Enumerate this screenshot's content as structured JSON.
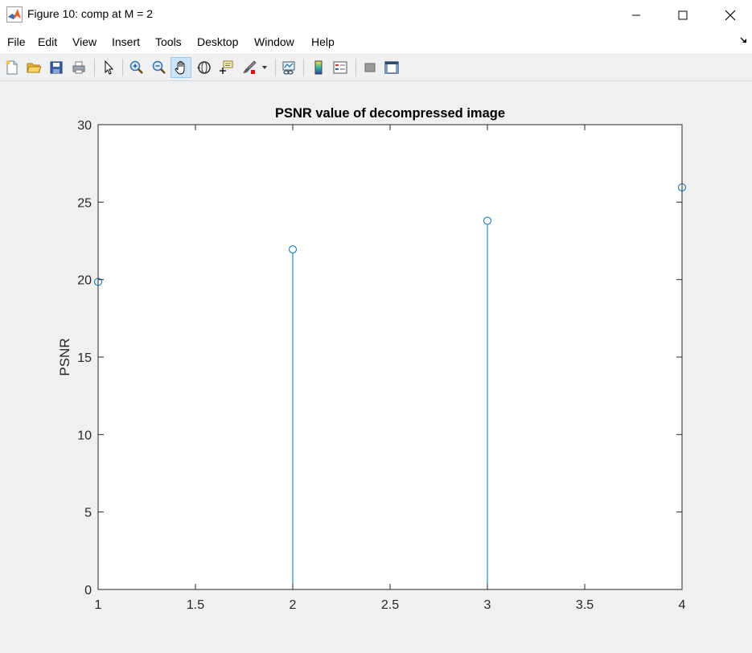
{
  "window": {
    "title": "Figure 10: comp at M = 2"
  },
  "menu": {
    "items": [
      "File",
      "Edit",
      "View",
      "Insert",
      "Tools",
      "Desktop",
      "Window",
      "Help"
    ]
  },
  "toolbar": {
    "buttons": [
      {
        "name": "new-figure",
        "icon": "new-file-icon"
      },
      {
        "name": "open-file",
        "icon": "folder-open-icon"
      },
      {
        "name": "save-figure",
        "icon": "save-icon"
      },
      {
        "name": "print-figure",
        "icon": "print-icon"
      },
      {
        "name": "edit-plot",
        "icon": "pointer-icon"
      },
      {
        "name": "zoom-in",
        "icon": "zoom-in-icon"
      },
      {
        "name": "zoom-out",
        "icon": "zoom-out-icon"
      },
      {
        "name": "pan",
        "icon": "hand-icon",
        "active": true
      },
      {
        "name": "rotate-3d",
        "icon": "rotate-icon"
      },
      {
        "name": "data-cursor",
        "icon": "data-cursor-icon"
      },
      {
        "name": "brush",
        "icon": "brush-icon"
      },
      {
        "name": "link-plot",
        "icon": "link-plot-icon"
      },
      {
        "name": "insert-colorbar",
        "icon": "colorbar-icon"
      },
      {
        "name": "insert-legend",
        "icon": "legend-icon"
      },
      {
        "name": "hide-plot-tools",
        "icon": "hide-tools-icon"
      },
      {
        "name": "show-plot-tools",
        "icon": "show-tools-icon"
      }
    ]
  },
  "chart_data": {
    "type": "stem",
    "title": "PSNR value of decompressed image",
    "xlabel": "",
    "ylabel": "PSNR",
    "x": [
      1,
      2,
      3,
      4
    ],
    "values": [
      19.85,
      21.95,
      23.8,
      25.95
    ],
    "xlim": [
      1,
      4
    ],
    "ylim": [
      0,
      30
    ],
    "xticks": [
      1,
      1.5,
      2,
      2.5,
      3,
      3.5,
      4
    ],
    "xtick_labels": [
      "1",
      "1.5",
      "2",
      "2.5",
      "3",
      "3.5",
      "4"
    ],
    "yticks": [
      0,
      5,
      10,
      15,
      20,
      25,
      30
    ],
    "ytick_labels": [
      "0",
      "5",
      "10",
      "15",
      "20",
      "25",
      "30"
    ],
    "grid": false,
    "color": "#0072bd",
    "marker": "circle-open"
  }
}
